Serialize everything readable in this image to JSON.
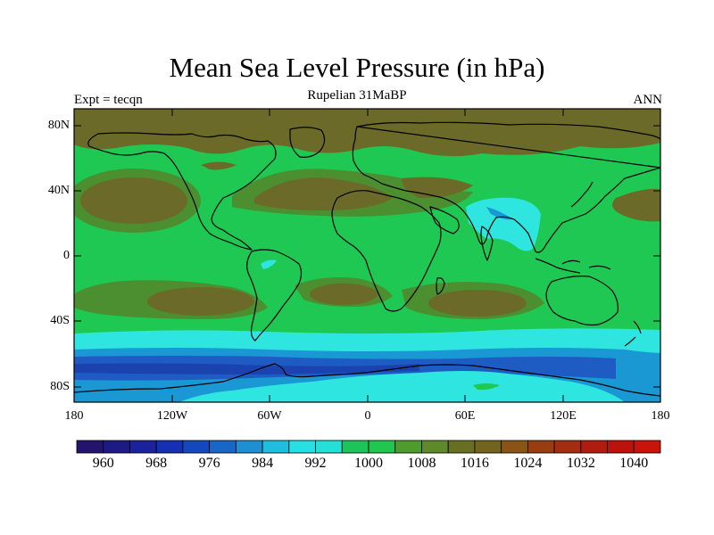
{
  "title": "Mean Sea Level Pressure (in hPa)",
  "subtitle": "Rupelian  31MaBP",
  "left_label": "Expt = tecqn",
  "right_label": "ANN",
  "lat_ticks": [
    "80N",
    "40N",
    "0",
    "40S",
    "80S"
  ],
  "lon_ticks": [
    "180",
    "120W",
    "60W",
    "0",
    "60E",
    "120E",
    "180"
  ],
  "colorbar": {
    "labels": [
      "960",
      "968",
      "976",
      "984",
      "992",
      "1000",
      "1008",
      "1016",
      "1024",
      "1032",
      "1040"
    ],
    "colors": [
      "#24146e",
      "#1e1a85",
      "#1a239c",
      "#1530b3",
      "#1348bf",
      "#1766c8",
      "#1f8fd4",
      "#1fbde0",
      "#28e0e3",
      "#24e0d6",
      "#1ec35a",
      "#21c64e",
      "#4d9c2c",
      "#5f8a29",
      "#686e22",
      "#72641e",
      "#8a5514",
      "#983d10",
      "#a42d0f",
      "#b01c0e",
      "#bc120c",
      "#c8140a"
    ]
  },
  "colors": {
    "high": "#6b6a28",
    "mid_high": "#4b8f30",
    "normal": "#1fc852",
    "low_cyan": "#2ee6df",
    "low_mid": "#1a98d4",
    "low_deep": "#1e5cc4",
    "low_deepest": "#1a43b0"
  }
}
